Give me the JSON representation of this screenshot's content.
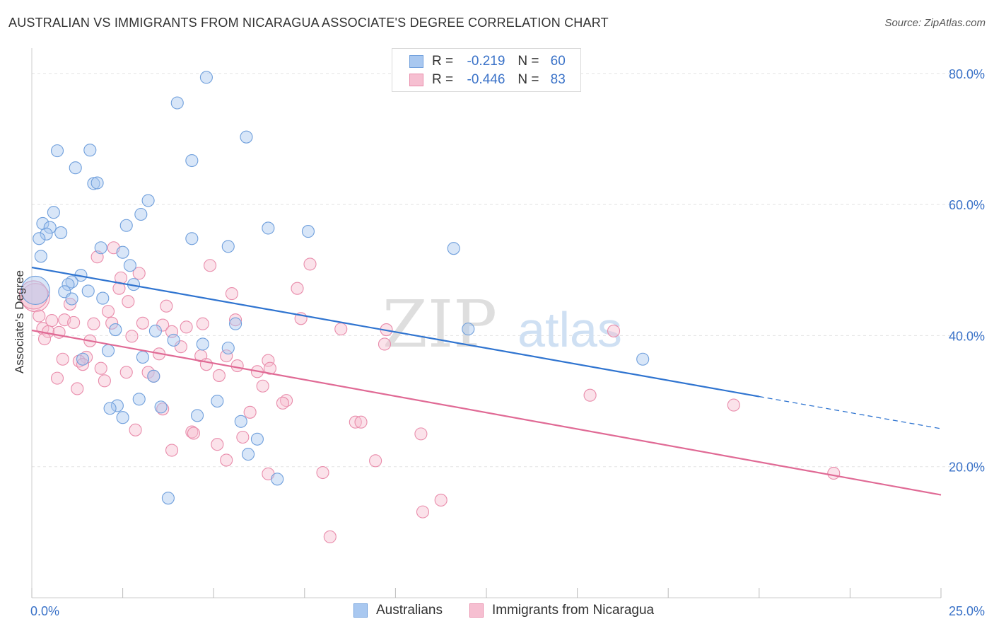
{
  "title": "AUSTRALIAN VS IMMIGRANTS FROM NICARAGUA ASSOCIATE'S DEGREE CORRELATION CHART",
  "source": "Source: ZipAtlas.com",
  "watermark": {
    "zip": "ZIP",
    "atlas": "atlas"
  },
  "colors": {
    "blue_fill": "#a9c8f0",
    "blue_stroke": "#6f9fdc",
    "blue_line": "#2f74d0",
    "pink_fill": "#f6bfd1",
    "pink_stroke": "#e98cab",
    "pink_line": "#e06a95",
    "grid": "#e3e3e3",
    "axis_text": "#3a72c8"
  },
  "legend": {
    "rows": [
      {
        "r_label": "R =",
        "r_value": "-0.219",
        "n_label": "N =",
        "n_value": "60"
      },
      {
        "r_label": "R =",
        "r_value": "-0.446",
        "n_label": "N =",
        "n_value": "83"
      }
    ]
  },
  "bottom_legend": [
    "Australians",
    "Immigrants from Nicaragua"
  ],
  "chart_data": {
    "type": "scatter",
    "title": "AUSTRALIAN VS IMMIGRANTS FROM NICARAGUA ASSOCIATE'S DEGREE CORRELATION CHART",
    "xlabel": "",
    "ylabel": "Associate's Degree",
    "xlim": [
      0,
      25
    ],
    "ylim": [
      0,
      83
    ],
    "x_tick_labels": [
      "0.0%",
      "25.0%"
    ],
    "y_ticks": [
      20,
      40,
      60,
      80
    ],
    "y_tick_labels": [
      "20.0%",
      "40.0%",
      "60.0%",
      "80.0%"
    ],
    "grid": true,
    "legend_position": "top-center",
    "series": [
      {
        "name": "Australians",
        "trend": {
          "x_start": 0,
          "y_start": 50.4,
          "x_end": 20,
          "y_end": 30.7,
          "dashed_to_x": 25,
          "dashed_to_y": 25.8
        },
        "points": [
          {
            "x": 4.8,
            "y": 79.4
          },
          {
            "x": 4.0,
            "y": 75.5
          },
          {
            "x": 5.9,
            "y": 70.3
          },
          {
            "x": 0.7,
            "y": 68.2
          },
          {
            "x": 1.6,
            "y": 68.3
          },
          {
            "x": 4.4,
            "y": 66.7
          },
          {
            "x": 1.2,
            "y": 65.6
          },
          {
            "x": 1.7,
            "y": 63.2
          },
          {
            "x": 1.8,
            "y": 63.3
          },
          {
            "x": 3.2,
            "y": 60.6
          },
          {
            "x": 0.6,
            "y": 58.8
          },
          {
            "x": 3.0,
            "y": 58.5
          },
          {
            "x": 0.3,
            "y": 57.1
          },
          {
            "x": 0.5,
            "y": 56.5
          },
          {
            "x": 2.6,
            "y": 56.8
          },
          {
            "x": 6.5,
            "y": 56.4
          },
          {
            "x": 0.4,
            "y": 55.5
          },
          {
            "x": 0.8,
            "y": 55.7
          },
          {
            "x": 7.6,
            "y": 55.9
          },
          {
            "x": 0.2,
            "y": 54.8
          },
          {
            "x": 4.4,
            "y": 54.8
          },
          {
            "x": 5.4,
            "y": 53.6
          },
          {
            "x": 11.6,
            "y": 53.3
          },
          {
            "x": 1.9,
            "y": 53.4
          },
          {
            "x": 2.5,
            "y": 52.7
          },
          {
            "x": 0.25,
            "y": 52.1
          },
          {
            "x": 2.7,
            "y": 50.7
          },
          {
            "x": 1.35,
            "y": 49.2
          },
          {
            "x": 1.1,
            "y": 48.2
          },
          {
            "x": 1.0,
            "y": 47.8
          },
          {
            "x": 2.8,
            "y": 47.8
          },
          {
            "x": 0.1,
            "y": 46.9
          },
          {
            "x": 0.9,
            "y": 46.7
          },
          {
            "x": 1.55,
            "y": 46.8
          },
          {
            "x": 1.1,
            "y": 45.6
          },
          {
            "x": 1.95,
            "y": 45.7
          },
          {
            "x": 5.6,
            "y": 41.8
          },
          {
            "x": 2.3,
            "y": 40.9
          },
          {
            "x": 3.4,
            "y": 40.7
          },
          {
            "x": 12.0,
            "y": 41.0
          },
          {
            "x": 3.9,
            "y": 39.3
          },
          {
            "x": 4.7,
            "y": 38.7
          },
          {
            "x": 5.4,
            "y": 38.1
          },
          {
            "x": 2.1,
            "y": 37.7
          },
          {
            "x": 1.4,
            "y": 36.4
          },
          {
            "x": 3.05,
            "y": 36.7
          },
          {
            "x": 16.8,
            "y": 36.4
          },
          {
            "x": 3.35,
            "y": 33.8
          },
          {
            "x": 2.95,
            "y": 30.3
          },
          {
            "x": 5.1,
            "y": 30.0
          },
          {
            "x": 2.35,
            "y": 29.3
          },
          {
            "x": 2.15,
            "y": 28.9
          },
          {
            "x": 3.55,
            "y": 29.1
          },
          {
            "x": 4.55,
            "y": 27.8
          },
          {
            "x": 2.5,
            "y": 27.5
          },
          {
            "x": 5.75,
            "y": 26.9
          },
          {
            "x": 6.2,
            "y": 24.2
          },
          {
            "x": 5.95,
            "y": 21.9
          },
          {
            "x": 6.75,
            "y": 18.1
          },
          {
            "x": 3.75,
            "y": 15.2
          }
        ]
      },
      {
        "name": "Immigrants from Nicaragua",
        "trend": {
          "x_start": 0,
          "y_start": 40.8,
          "x_end": 25,
          "y_end": 15.7
        },
        "points": [
          {
            "x": 2.25,
            "y": 53.4
          },
          {
            "x": 1.8,
            "y": 52.0
          },
          {
            "x": 4.9,
            "y": 50.7
          },
          {
            "x": 7.65,
            "y": 50.9
          },
          {
            "x": 2.95,
            "y": 49.5
          },
          {
            "x": 2.45,
            "y": 48.8
          },
          {
            "x": 2.4,
            "y": 47.2
          },
          {
            "x": 7.3,
            "y": 47.2
          },
          {
            "x": 5.5,
            "y": 46.4
          },
          {
            "x": 0.1,
            "y": 45.8
          },
          {
            "x": 2.65,
            "y": 45.2
          },
          {
            "x": 1.05,
            "y": 44.8
          },
          {
            "x": 3.7,
            "y": 44.5
          },
          {
            "x": 2.1,
            "y": 43.7
          },
          {
            "x": 0.2,
            "y": 43.0
          },
          {
            "x": 7.4,
            "y": 42.6
          },
          {
            "x": 5.6,
            "y": 42.4
          },
          {
            "x": 0.55,
            "y": 42.3
          },
          {
            "x": 0.9,
            "y": 42.4
          },
          {
            "x": 1.15,
            "y": 42.0
          },
          {
            "x": 2.2,
            "y": 41.9
          },
          {
            "x": 3.05,
            "y": 41.9
          },
          {
            "x": 1.7,
            "y": 41.8
          },
          {
            "x": 3.6,
            "y": 41.6
          },
          {
            "x": 4.7,
            "y": 41.8
          },
          {
            "x": 4.25,
            "y": 41.3
          },
          {
            "x": 0.3,
            "y": 41.1
          },
          {
            "x": 8.5,
            "y": 41.0
          },
          {
            "x": 0.45,
            "y": 40.6
          },
          {
            "x": 0.75,
            "y": 40.5
          },
          {
            "x": 9.75,
            "y": 40.9
          },
          {
            "x": 16.0,
            "y": 40.7
          },
          {
            "x": 3.85,
            "y": 40.6
          },
          {
            "x": 2.75,
            "y": 39.9
          },
          {
            "x": 0.35,
            "y": 39.5
          },
          {
            "x": 1.6,
            "y": 39.2
          },
          {
            "x": 9.7,
            "y": 38.7
          },
          {
            "x": 4.1,
            "y": 38.3
          },
          {
            "x": 3.5,
            "y": 37.2
          },
          {
            "x": 4.65,
            "y": 36.9
          },
          {
            "x": 5.35,
            "y": 36.9
          },
          {
            "x": 1.5,
            "y": 36.7
          },
          {
            "x": 0.85,
            "y": 36.4
          },
          {
            "x": 1.3,
            "y": 36.1
          },
          {
            "x": 6.5,
            "y": 36.2
          },
          {
            "x": 1.4,
            "y": 35.6
          },
          {
            "x": 4.8,
            "y": 35.6
          },
          {
            "x": 5.65,
            "y": 35.4
          },
          {
            "x": 1.9,
            "y": 35.0
          },
          {
            "x": 6.55,
            "y": 35.0
          },
          {
            "x": 3.2,
            "y": 34.4
          },
          {
            "x": 2.6,
            "y": 34.4
          },
          {
            "x": 6.2,
            "y": 34.5
          },
          {
            "x": 5.15,
            "y": 33.9
          },
          {
            "x": 3.35,
            "y": 33.8
          },
          {
            "x": 0.7,
            "y": 33.5
          },
          {
            "x": 2.0,
            "y": 33.1
          },
          {
            "x": 6.35,
            "y": 32.3
          },
          {
            "x": 1.25,
            "y": 31.9
          },
          {
            "x": 15.35,
            "y": 30.9
          },
          {
            "x": 7.0,
            "y": 30.1
          },
          {
            "x": 6.9,
            "y": 29.7
          },
          {
            "x": 19.3,
            "y": 29.4
          },
          {
            "x": 3.6,
            "y": 28.8
          },
          {
            "x": 6.0,
            "y": 28.3
          },
          {
            "x": 8.9,
            "y": 26.8
          },
          {
            "x": 9.05,
            "y": 26.8
          },
          {
            "x": 2.85,
            "y": 25.6
          },
          {
            "x": 4.4,
            "y": 25.3
          },
          {
            "x": 4.45,
            "y": 25.1
          },
          {
            "x": 10.7,
            "y": 25.0
          },
          {
            "x": 5.8,
            "y": 24.5
          },
          {
            "x": 5.1,
            "y": 23.4
          },
          {
            "x": 3.85,
            "y": 22.5
          },
          {
            "x": 5.35,
            "y": 21.0
          },
          {
            "x": 9.45,
            "y": 20.9
          },
          {
            "x": 6.5,
            "y": 18.9
          },
          {
            "x": 8.0,
            "y": 19.1
          },
          {
            "x": 22.05,
            "y": 19.0
          },
          {
            "x": 11.25,
            "y": 14.9
          },
          {
            "x": 10.75,
            "y": 13.1
          },
          {
            "x": 8.2,
            "y": 9.3
          },
          {
            "x": 0.05,
            "y": 46.2
          }
        ]
      }
    ]
  }
}
